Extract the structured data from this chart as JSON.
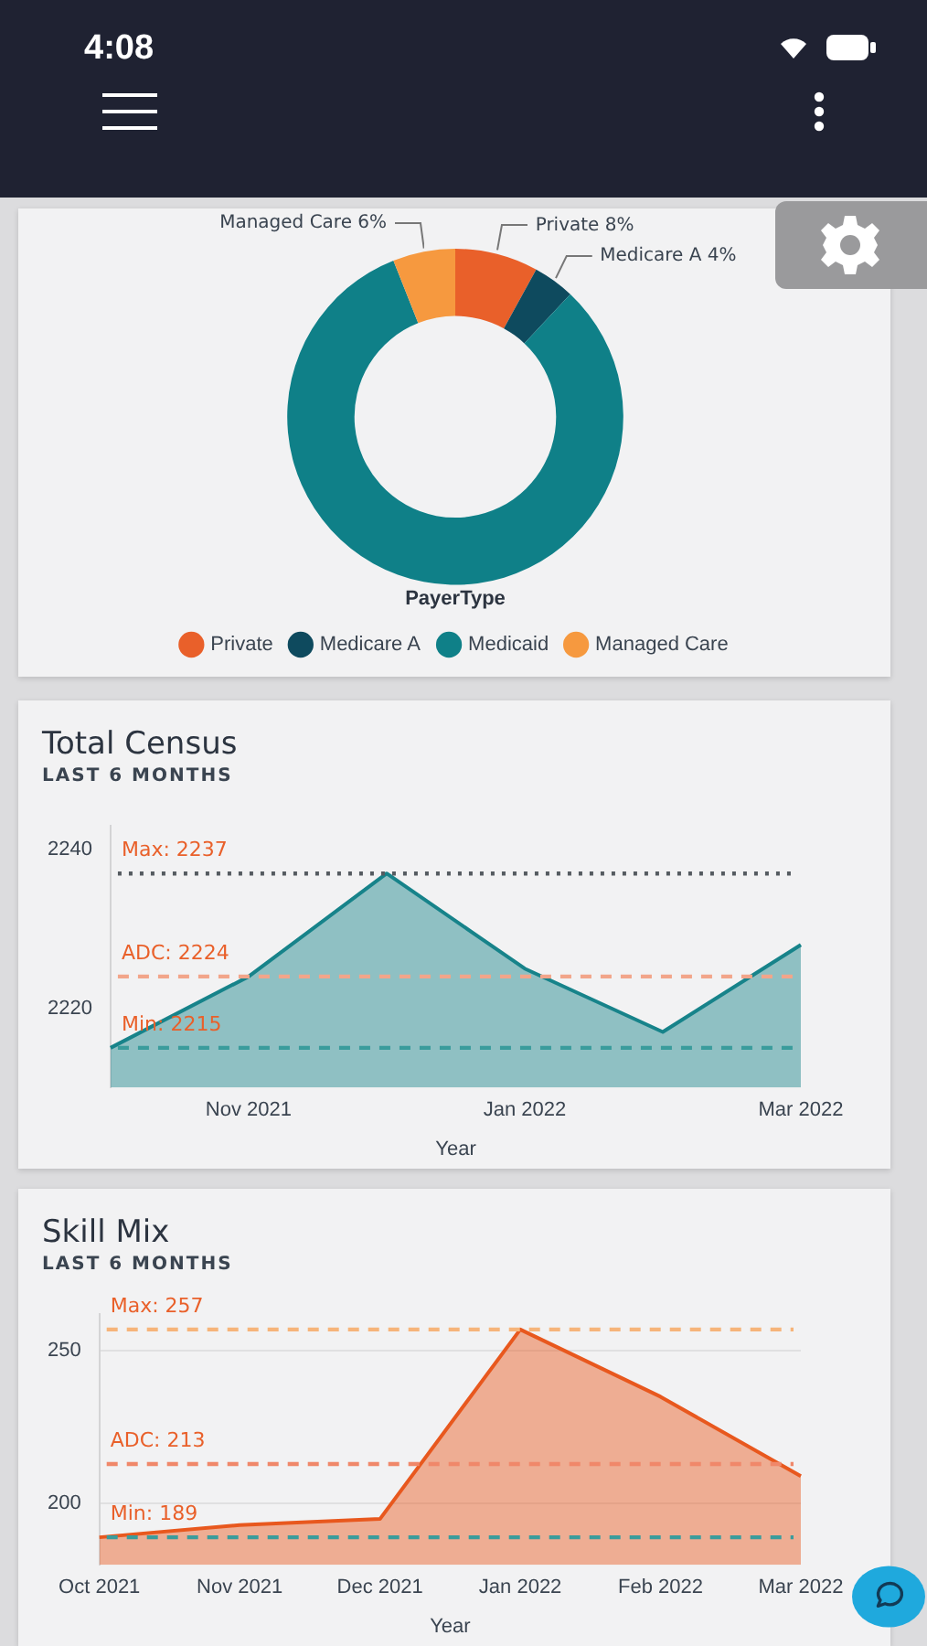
{
  "chart_data": [
    {
      "type": "donut",
      "categories": [
        "Private",
        "Medicare A",
        "Medicaid",
        "Managed Care"
      ],
      "values": [
        8,
        4,
        82,
        6
      ],
      "colors": [
        "#e9602a",
        "#0e4a5e",
        "#0f8088",
        "#f6993f"
      ],
      "value_labels": [
        "8%",
        "4%",
        null,
        "6%"
      ],
      "legend": "bottom",
      "legend_title": "PayerType",
      "annotations": [
        "4:08"
      ]
    },
    {
      "type": "area",
      "title": "Total Census",
      "subtitle": "LAST 6 MONTHS",
      "xlabel": "Year",
      "categories": [
        null,
        "Nov 2021",
        null,
        "Jan 2022",
        null,
        "Mar 2022"
      ],
      "values": [
        2215,
        2224,
        2237,
        2225,
        2217,
        2228
      ],
      "color": "#17838a",
      "ylim": [
        2210,
        2243
      ],
      "yticks": [
        2220,
        2240
      ],
      "marker": "none",
      "ref_lines": [
        {
          "axis": "y",
          "value": 2237,
          "label": "Max: 2237",
          "color": "#555b60",
          "line_style": "dotted"
        },
        {
          "axis": "y",
          "value": 2224,
          "label": "ADC: 2224",
          "color": "#f2a58a",
          "line_style": "dashed"
        },
        {
          "axis": "y",
          "value": 2215,
          "label": "Min: 2215",
          "color": "#3a9c9c",
          "line_style": "dashed"
        }
      ]
    },
    {
      "type": "area",
      "title": "Skill Mix",
      "subtitle": "LAST 6 MONTHS",
      "xlabel": "Year",
      "categories": [
        "Oct 2021",
        "Nov 2021",
        "Dec 2021",
        "Jan 2022",
        "Feb 2022",
        "Mar 2022"
      ],
      "values": [
        189,
        193,
        195,
        257,
        235,
        209
      ],
      "color": "#e8581e",
      "ylim": [
        180,
        262
      ],
      "yticks": [
        200,
        250
      ],
      "grid": "y",
      "marker": "none",
      "ref_lines": [
        {
          "axis": "y",
          "value": 257,
          "label": "Max: 257",
          "color": "#f6b47a",
          "line_style": "dashed"
        },
        {
          "axis": "y",
          "value": 213,
          "label": "ADC: 213",
          "color": "#f0886a",
          "line_style": "dashed"
        },
        {
          "axis": "y",
          "value": 189,
          "label": "Min: 189",
          "color": "#3a9c9c",
          "line_style": "dashed"
        }
      ]
    }
  ]
}
